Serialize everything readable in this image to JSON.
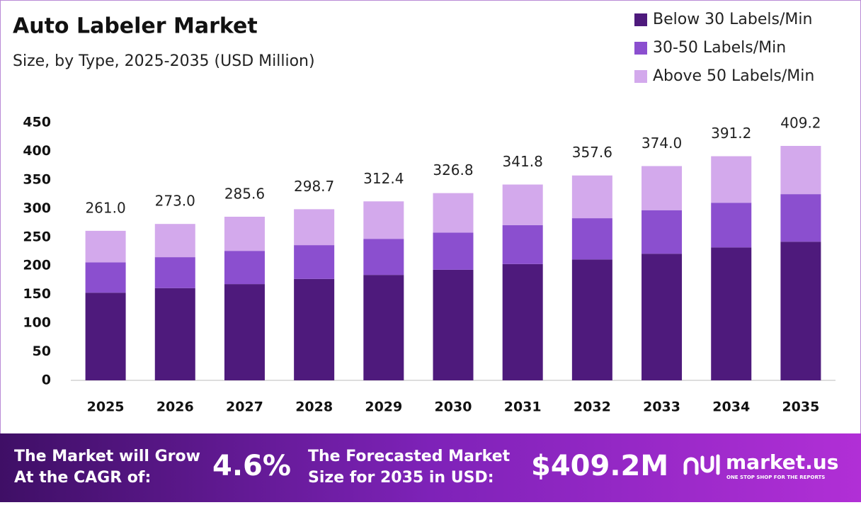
{
  "chart_data": {
    "type": "stacked_bar",
    "title": "Auto Labeler Market",
    "subtitle": "Size, by Type, 2025-2035 (USD Million)",
    "categories": [
      "2025",
      "2026",
      "2027",
      "2028",
      "2029",
      "2030",
      "2031",
      "2032",
      "2033",
      "2034",
      "2035"
    ],
    "series": [
      {
        "name": "Below 30 Labels/Min",
        "color": "#4e1a7c",
        "values": [
          153,
          161,
          168,
          177,
          184,
          193,
          203,
          211,
          221,
          232,
          242
        ]
      },
      {
        "name": "30-50 Labels/Min",
        "color": "#8b4fcf",
        "values": [
          53,
          54,
          58,
          59,
          63,
          65,
          68,
          72,
          76,
          78,
          83
        ]
      },
      {
        "name": "Above 50 Labels/Min",
        "color": "#d3a9ec",
        "values": [
          55,
          58,
          59.6,
          62.7,
          65.4,
          68.8,
          70.8,
          74.6,
          77,
          81.2,
          84.2
        ]
      }
    ],
    "total_labels": [
      "261.0",
      "273.0",
      "285.6",
      "298.7",
      "312.4",
      "326.8",
      "341.8",
      "357.6",
      "374.0",
      "391.2",
      "409.2"
    ],
    "ylim": [
      0,
      450
    ],
    "yticks": [
      0,
      50,
      100,
      150,
      200,
      250,
      300,
      350,
      400,
      450
    ],
    "grid": false,
    "legend": "top-right"
  },
  "footer": {
    "cagr_text": [
      "The Market will Grow",
      "At the CAGR of:"
    ],
    "cagr_value": "4.6%",
    "forecast_text": [
      "The Forecasted Market",
      "Size for 2035 in USD:"
    ],
    "forecast_value": "$409.2M",
    "brand": "market.us",
    "tagline": "ONE STOP SHOP FOR THE REPORTS"
  }
}
